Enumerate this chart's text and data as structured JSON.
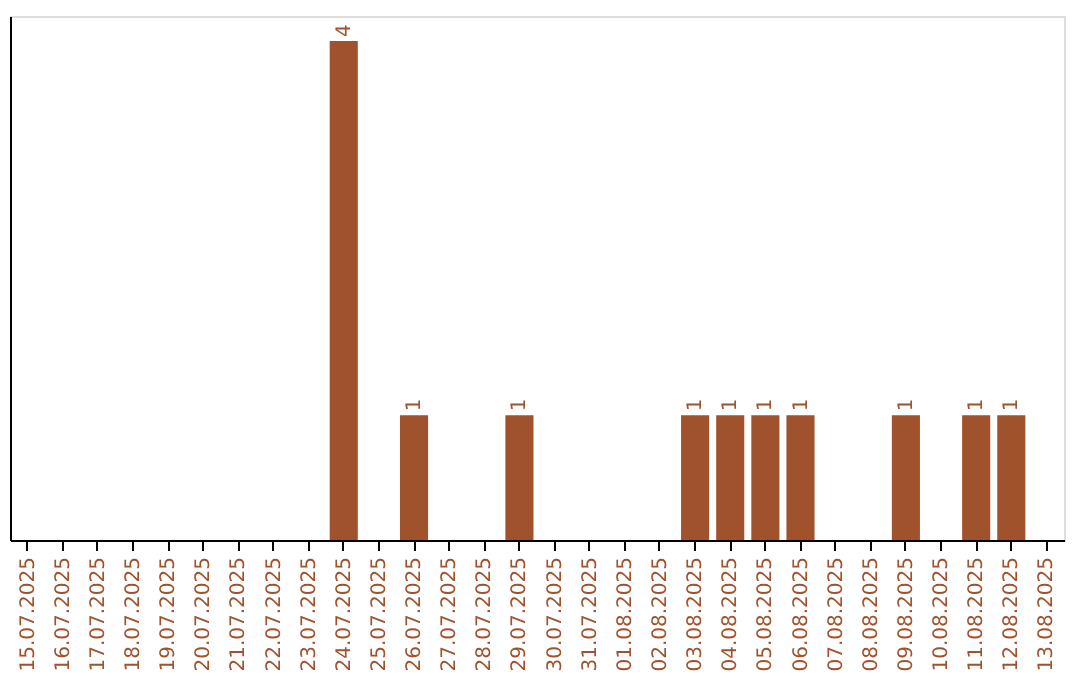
{
  "chart_data": {
    "type": "bar",
    "categories": [
      "15.07.2025",
      "16.07.2025",
      "17.07.2025",
      "18.07.2025",
      "19.07.2025",
      "20.07.2025",
      "21.07.2025",
      "22.07.2025",
      "23.07.2025",
      "24.07.2025",
      "25.07.2025",
      "26.07.2025",
      "27.07.2025",
      "28.07.2025",
      "29.07.2025",
      "30.07.2025",
      "31.07.2025",
      "01.08.2025",
      "02.08.2025",
      "03.08.2025",
      "04.08.2025",
      "05.08.2025",
      "06.08.2025",
      "07.08.2025",
      "08.08.2025",
      "09.08.2025",
      "10.08.2025",
      "11.08.2025",
      "12.08.2025",
      "13.08.2025"
    ],
    "values": [
      0,
      0,
      0,
      0,
      0,
      0,
      0,
      0,
      0,
      4,
      0,
      1,
      0,
      0,
      1,
      0,
      0,
      0,
      0,
      1,
      1,
      1,
      1,
      0,
      0,
      1,
      0,
      1,
      1,
      0
    ],
    "value_labels": [
      null,
      null,
      null,
      null,
      null,
      null,
      null,
      null,
      null,
      "4",
      null,
      "1",
      null,
      null,
      "1",
      null,
      null,
      null,
      null,
      "1",
      "1",
      "1",
      "1",
      null,
      null,
      "1",
      null,
      "1",
      "1",
      null
    ],
    "color": "#a0522d",
    "ylim": [
      0,
      4.2
    ],
    "tick_labels": "x"
  }
}
